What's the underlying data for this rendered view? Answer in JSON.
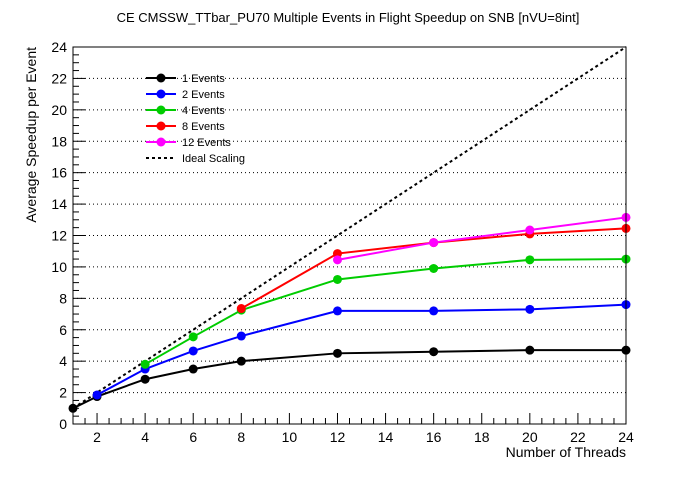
{
  "chart_data": {
    "type": "line",
    "title": "CE CMSSW_TTbar_PU70 Multiple Events in Flight Speedup on SNB [nVU=8int]",
    "xlabel": "Number of Threads",
    "ylabel": "Average Speedup per Event",
    "xlim": [
      1,
      24
    ],
    "ylim": [
      0,
      24
    ],
    "xticks": [
      2,
      4,
      6,
      8,
      10,
      12,
      14,
      16,
      18,
      20,
      22,
      24
    ],
    "yticks": [
      0,
      2,
      4,
      6,
      8,
      10,
      12,
      14,
      16,
      18,
      20,
      22,
      24
    ],
    "grid": "horizontal dotted",
    "legend_position": "top-left",
    "series": [
      {
        "name": "1 Events",
        "color": "#000000",
        "x": [
          1,
          2,
          4,
          6,
          8,
          12,
          16,
          20,
          24
        ],
        "y": [
          1.0,
          1.75,
          2.85,
          3.5,
          4.0,
          4.5,
          4.6,
          4.7,
          4.7
        ]
      },
      {
        "name": "2 Events",
        "color": "#0000ff",
        "x": [
          2,
          4,
          6,
          8,
          12,
          16,
          20,
          24
        ],
        "y": [
          1.85,
          3.5,
          4.65,
          5.6,
          7.2,
          7.2,
          7.3,
          7.6
        ]
      },
      {
        "name": "4 Events",
        "color": "#00cc00",
        "x": [
          4,
          6,
          8,
          12,
          16,
          20,
          24
        ],
        "y": [
          3.8,
          5.55,
          7.25,
          9.2,
          9.9,
          10.45,
          10.5
        ]
      },
      {
        "name": "8 Events",
        "color": "#ff0000",
        "x": [
          8,
          12,
          16,
          20,
          24
        ],
        "y": [
          7.35,
          10.85,
          11.55,
          12.1,
          12.45
        ]
      },
      {
        "name": "12 Events",
        "color": "#ff00ff",
        "x": [
          12,
          16,
          20,
          24
        ],
        "y": [
          10.45,
          11.55,
          12.35,
          13.15
        ]
      },
      {
        "name": "Ideal Scaling",
        "color": "#000000",
        "style": "dotted",
        "x": [
          1,
          24
        ],
        "y": [
          1,
          24
        ]
      }
    ]
  }
}
